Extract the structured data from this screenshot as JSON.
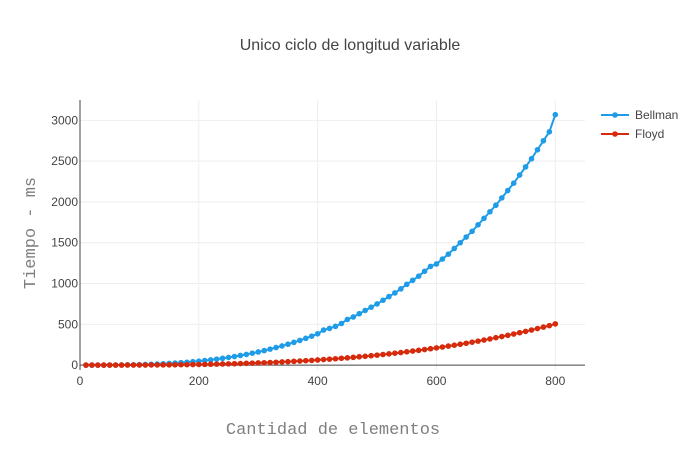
{
  "chart_data": {
    "type": "line",
    "title": "Unico ciclo de longitud variable",
    "xlabel": "Cantidad de elementos",
    "ylabel": "Tiempo - ms",
    "xlim": [
      0,
      850
    ],
    "ylim": [
      -60,
      3250
    ],
    "x_ticks": [
      0,
      200,
      400,
      600,
      800
    ],
    "y_ticks": [
      0,
      500,
      1000,
      1500,
      2000,
      2500,
      3000
    ],
    "grid": true,
    "legend_position": "top-right",
    "x": [
      10,
      20,
      30,
      40,
      50,
      60,
      70,
      80,
      90,
      100,
      110,
      120,
      130,
      140,
      150,
      160,
      170,
      180,
      190,
      200,
      210,
      220,
      230,
      240,
      250,
      260,
      270,
      280,
      290,
      300,
      310,
      320,
      330,
      340,
      350,
      360,
      370,
      380,
      390,
      400,
      410,
      420,
      430,
      440,
      450,
      460,
      470,
      480,
      490,
      500,
      510,
      520,
      530,
      540,
      550,
      560,
      570,
      580,
      590,
      600,
      610,
      620,
      630,
      640,
      650,
      660,
      670,
      680,
      690,
      700,
      710,
      720,
      730,
      740,
      750,
      760,
      770,
      780,
      790,
      800
    ],
    "series": [
      {
        "name": "Bellman",
        "color": "#1f9ce8",
        "values": [
          0,
          0,
          0,
          0,
          1,
          1,
          2,
          3,
          4,
          6,
          8,
          10,
          13,
          16,
          20,
          25,
          30,
          35,
          42,
          48,
          56,
          64,
          73,
          83,
          94,
          105,
          118,
          131,
          146,
          161,
          178,
          196,
          215,
          235,
          256,
          279,
          303,
          328,
          355,
          384,
          430,
          450,
          475,
          510,
          560,
          590,
          630,
          670,
          710,
          750,
          795,
          840,
          885,
          935,
          990,
          1040,
          1090,
          1150,
          1210,
          1240,
          1300,
          1360,
          1430,
          1500,
          1570,
          1640,
          1720,
          1800,
          1880,
          1960,
          2050,
          2140,
          2230,
          2330,
          2430,
          2530,
          2640,
          2750,
          2860,
          3070
        ]
      },
      {
        "name": "Floyd",
        "color": "#d62a0d",
        "values": [
          0,
          0,
          0,
          0,
          0,
          0,
          0,
          1,
          1,
          1,
          1,
          2,
          2,
          3,
          3,
          4,
          5,
          6,
          7,
          8,
          9,
          11,
          12,
          14,
          15,
          17,
          19,
          22,
          24,
          27,
          29,
          32,
          35,
          39,
          42,
          46,
          50,
          54,
          58,
          63,
          68,
          73,
          78,
          84,
          89,
          95,
          102,
          108,
          115,
          122,
          130,
          138,
          146,
          154,
          163,
          172,
          181,
          191,
          201,
          211,
          222,
          233,
          244,
          256,
          268,
          281,
          294,
          307,
          321,
          336,
          350,
          365,
          381,
          397,
          413,
          430,
          448,
          466,
          484,
          505
        ]
      }
    ]
  }
}
